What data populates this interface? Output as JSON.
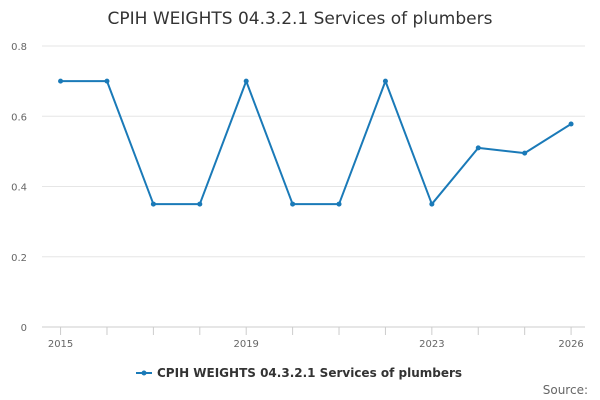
{
  "chart_data": {
    "type": "line",
    "title": "CPIH WEIGHTS 04.3.2.1 Services of plumbers",
    "xlabel": "",
    "ylabel": "",
    "x": [
      2015,
      2016,
      2017,
      2018,
      2019,
      2020,
      2021,
      2022,
      2023,
      2024,
      2025,
      2026
    ],
    "xticks": [
      2015,
      2019,
      2023,
      2026
    ],
    "yticks": [
      0,
      0.2,
      0.4,
      0.6,
      0.8
    ],
    "ylim": [
      0,
      0.8
    ],
    "xlim": [
      2014.6,
      2026.3
    ],
    "grid": true,
    "legend_position": "bottom",
    "series": [
      {
        "name": "CPIH WEIGHTS 04.3.2.1 Services of plumbers",
        "values": [
          0.7,
          0.7,
          0.35,
          0.35,
          0.7,
          0.35,
          0.35,
          0.7,
          0.35,
          0.51,
          0.495,
          0.578
        ],
        "color": "#1a7ab8"
      }
    ]
  },
  "credits": "Source:"
}
